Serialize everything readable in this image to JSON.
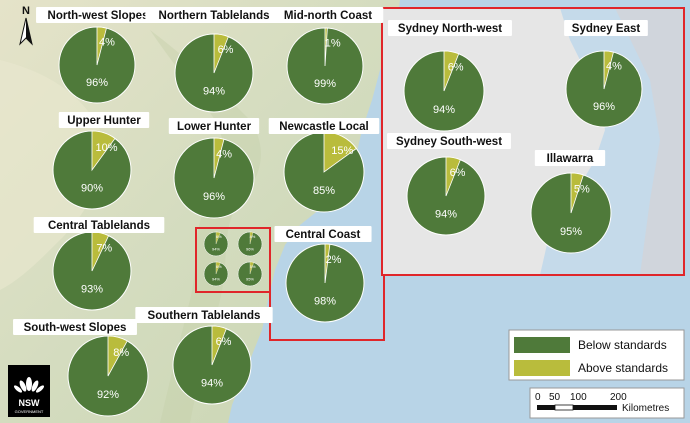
{
  "colors": {
    "below": "#4f7a3a",
    "above": "#b9bc3c",
    "sea": "#b7d3e6",
    "land": "#d9dcc4",
    "inset_border": "#e0262a",
    "inset_land": "#e2e2e2",
    "inset_sea": "#c3d9e9"
  },
  "regions": [
    {
      "name": "North-west Slopes",
      "below": 96,
      "above": 4,
      "below_label": "96%",
      "above_label": "4%"
    },
    {
      "name": "Northern Tablelands",
      "below": 94,
      "above": 6,
      "below_label": "94%",
      "above_label": "6%"
    },
    {
      "name": "Mid-north Coast",
      "below": 99,
      "above": 1,
      "below_label": "99%",
      "above_label": "1%"
    },
    {
      "name": "Upper Hunter",
      "below": 90,
      "above": 10,
      "below_label": "90%",
      "above_label": "10%"
    },
    {
      "name": "Lower Hunter",
      "below": 96,
      "above": 4,
      "below_label": "96%",
      "above_label": "4%"
    },
    {
      "name": "Newcastle Local",
      "below": 85,
      "above": 15,
      "below_label": "85%",
      "above_label": "15%"
    },
    {
      "name": "Central Tablelands",
      "below": 93,
      "above": 7,
      "below_label": "93%",
      "above_label": "7%"
    },
    {
      "name": "Central Coast",
      "below": 98,
      "above": 2,
      "below_label": "98%",
      "above_label": "2%"
    },
    {
      "name": "South-west Slopes",
      "below": 92,
      "above": 8,
      "below_label": "92%",
      "above_label": "8%"
    },
    {
      "name": "Southern Tablelands",
      "below": 94,
      "above": 6,
      "below_label": "94%",
      "above_label": "6%"
    }
  ],
  "inset_regions": [
    {
      "name": "Sydney North-west",
      "below": 94,
      "above": 6,
      "below_label": "94%",
      "above_label": "6%"
    },
    {
      "name": "Sydney East",
      "below": 96,
      "above": 4,
      "below_label": "96%",
      "above_label": "4%"
    },
    {
      "name": "Sydney South-west",
      "below": 94,
      "above": 6,
      "below_label": "94%",
      "above_label": "6%"
    },
    {
      "name": "Illawarra",
      "below": 95,
      "above": 5,
      "below_label": "95%",
      "above_label": "5%"
    }
  ],
  "mini_pies": [
    {
      "below": 94,
      "above": 6,
      "below_label": "94%",
      "above_label": "6%"
    },
    {
      "below": 96,
      "above": 4,
      "below_label": "96%",
      "above_label": "4%"
    },
    {
      "below": 94,
      "above": 6,
      "below_label": "94%",
      "above_label": "6%"
    },
    {
      "below": 95,
      "above": 5,
      "below_label": "95%",
      "above_label": "5%"
    }
  ],
  "legend": {
    "below_label": "Below standards",
    "above_label": "Above standards"
  },
  "north_arrow": {
    "label": "N",
    "icon": "north-arrow-icon"
  },
  "scale_bar": {
    "ticks": [
      "0",
      "50",
      "100",
      "200"
    ],
    "unit": "Kilometres"
  },
  "logo": {
    "line1": "NSW",
    "line2": "GOVERNMENT",
    "icon": "waratah-logo-icon"
  }
}
